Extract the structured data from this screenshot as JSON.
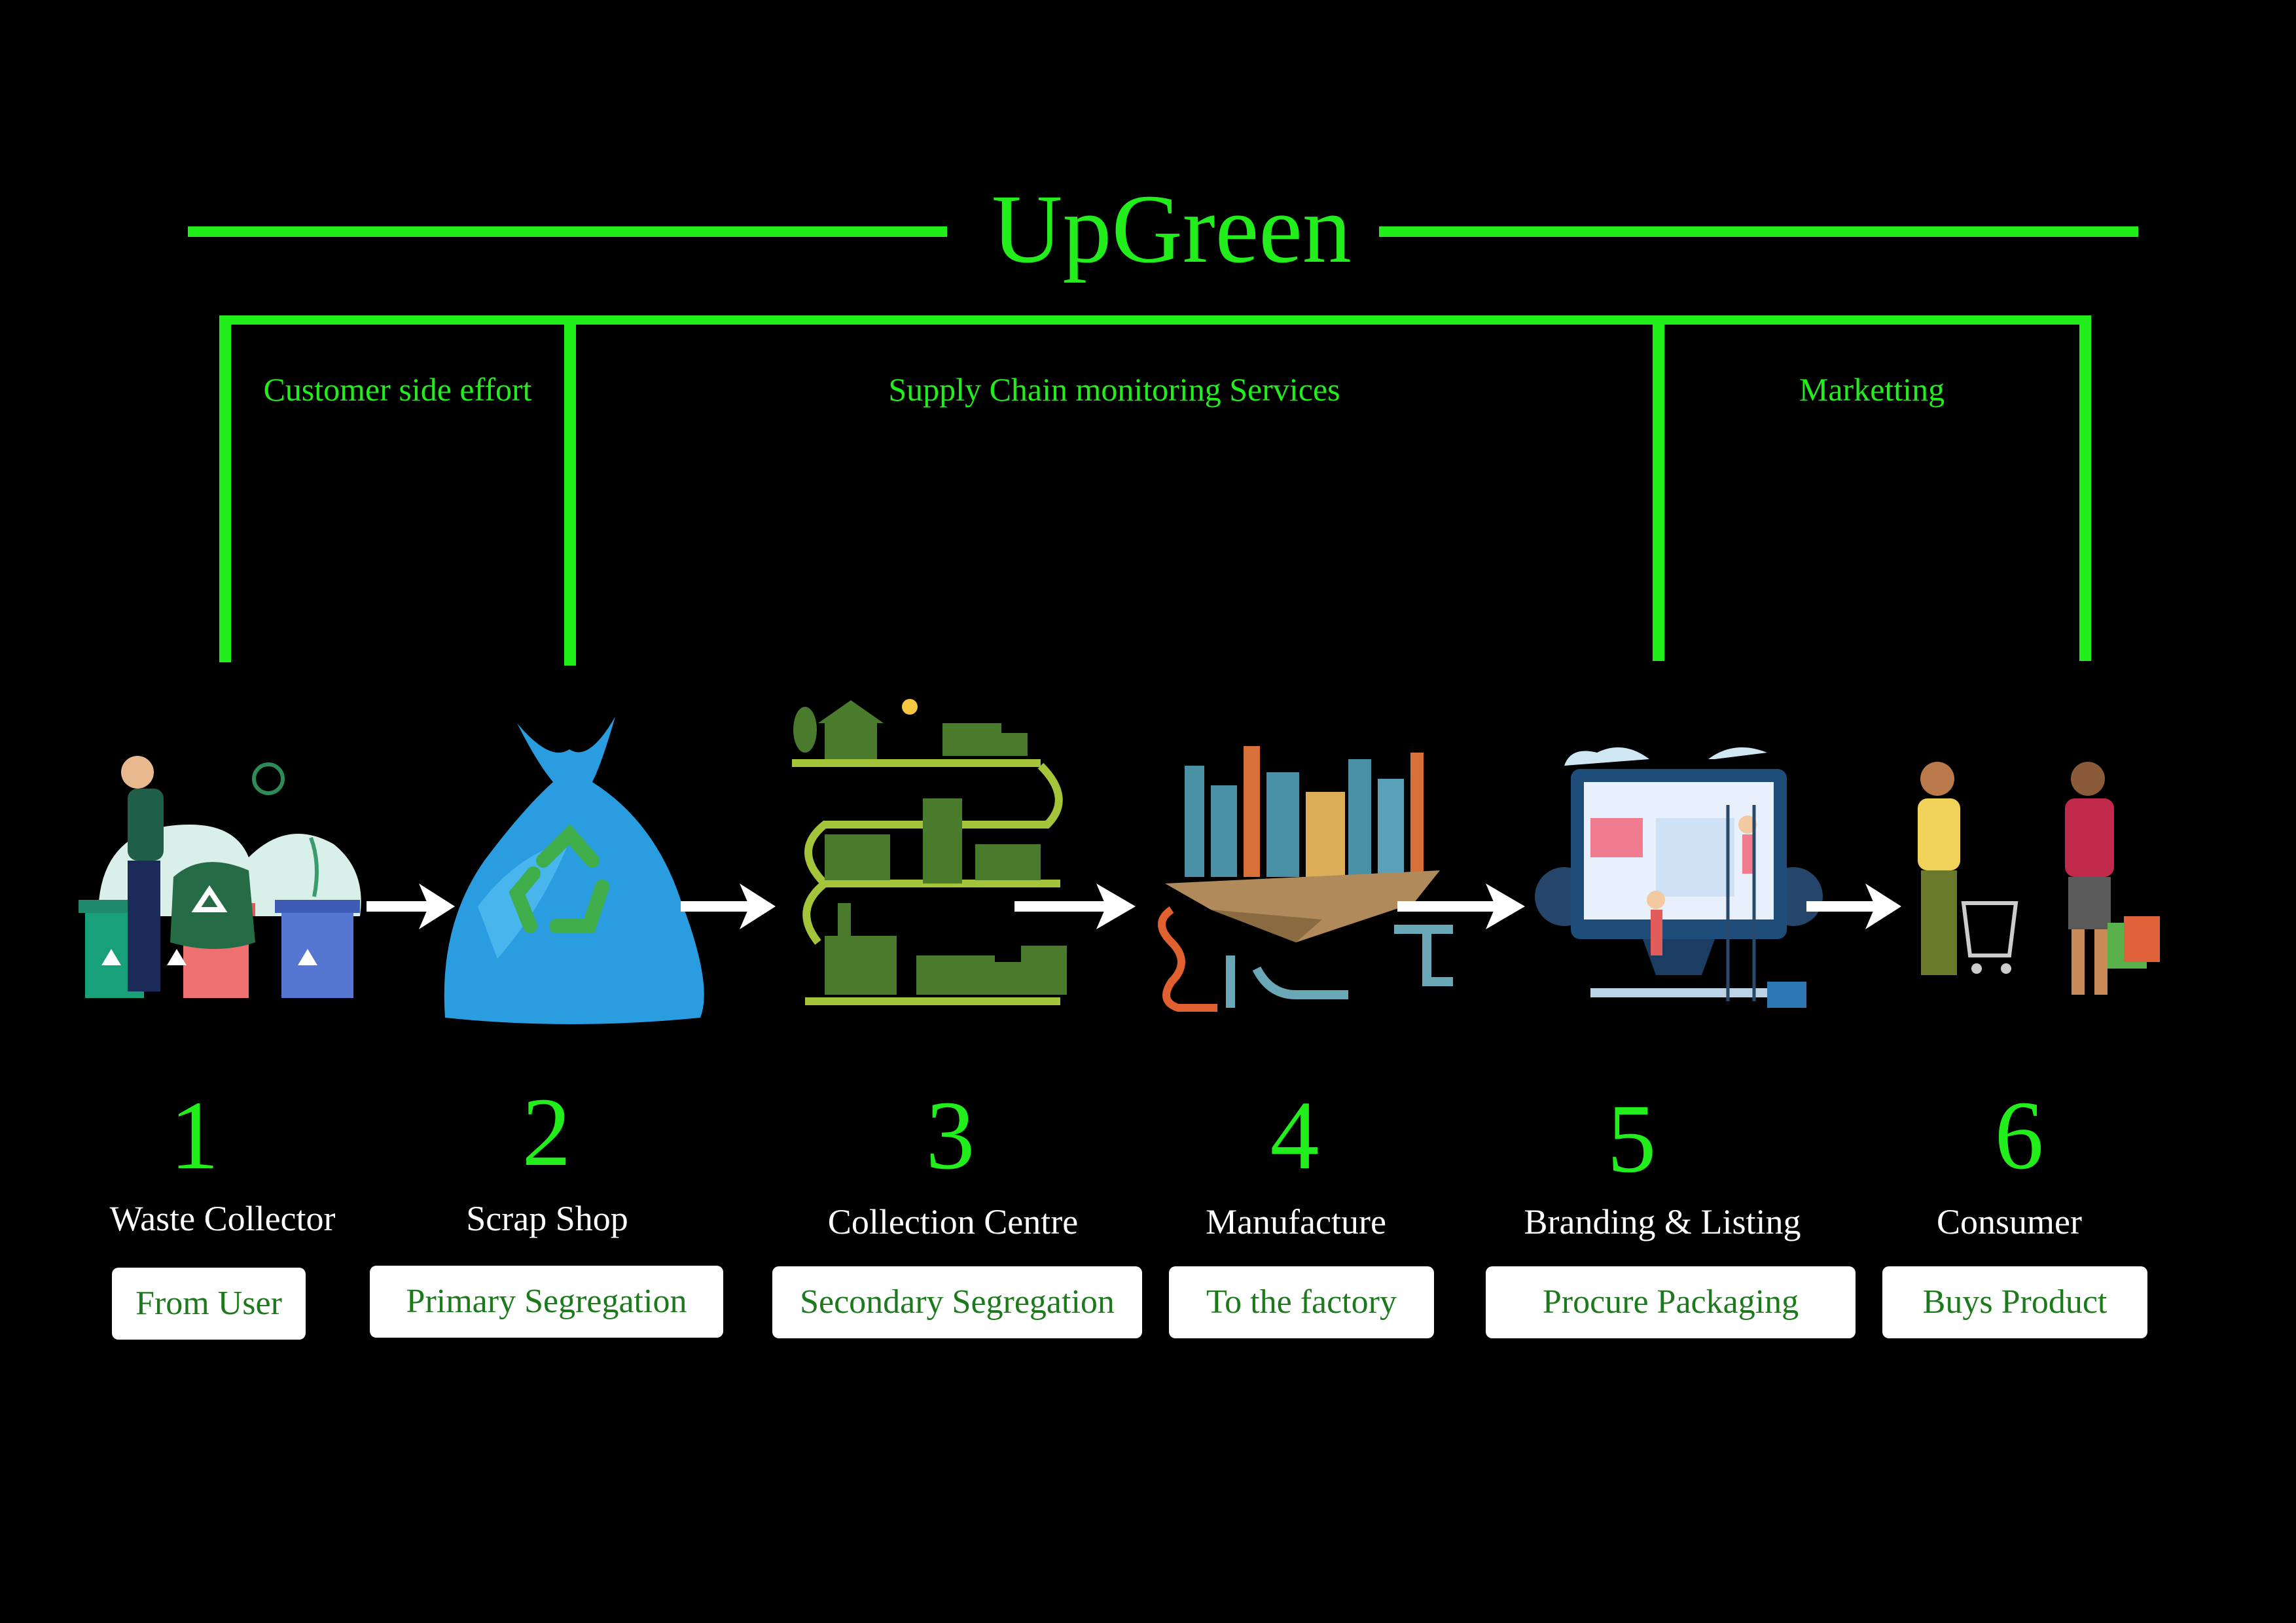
{
  "brand": {
    "title": "UpGreen",
    "accent": "#22ee1c"
  },
  "sections": [
    {
      "label": "Customer side effort"
    },
    {
      "label": "Supply Chain monitoring Services"
    },
    {
      "label": "Marketting"
    }
  ],
  "steps": [
    {
      "number": "1",
      "name": "Waste Collector",
      "action": "From User",
      "icon": "waste-bins-icon"
    },
    {
      "number": "2",
      "name": "Scrap Shop",
      "action": "Primary Segregation",
      "icon": "recycle-bag-icon"
    },
    {
      "number": "3",
      "name": "Collection Centre",
      "action": "Secondary Segregation",
      "icon": "collection-centre-icon"
    },
    {
      "number": "4",
      "name": "Manufacture",
      "action": "To the factory",
      "icon": "factory-icon"
    },
    {
      "number": "5",
      "name": "Branding & Listing",
      "action": "Procure Packaging",
      "icon": "web-listing-icon"
    },
    {
      "number": "6",
      "name": "Consumer",
      "action": "Buys Product",
      "icon": "shoppers-icon"
    }
  ]
}
